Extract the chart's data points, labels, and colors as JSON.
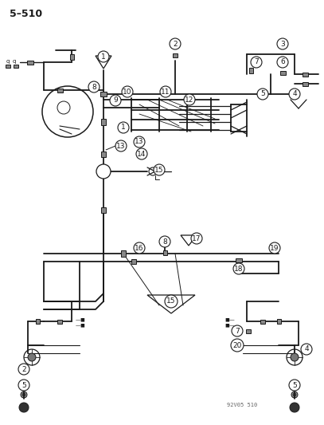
{
  "title": "5–510",
  "watermark": "92V05 510",
  "bg_color": "#ffffff",
  "line_color": "#1a1a1a",
  "fig_width": 4.07,
  "fig_height": 5.33,
  "dpi": 100
}
